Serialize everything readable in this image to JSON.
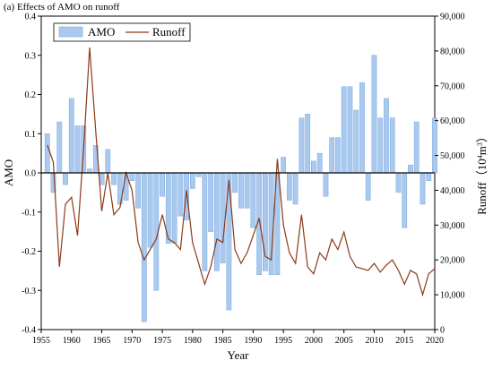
{
  "chart_data": {
    "type": "bar+line",
    "title": "(a) Effects of AMO on runoff",
    "xlabel": "Year",
    "ylabel_left": "AMO",
    "ylabel_right_main": "Runoff（10",
    "ylabel_right_sup": "4",
    "ylabel_right_unit": "m",
    "ylabel_right_sup2": "3",
    "ylabel_right_close": "）",
    "xlim": [
      1955,
      2020
    ],
    "ylim_left": [
      -0.4,
      0.4
    ],
    "ylim_right": [
      0,
      90000
    ],
    "x_ticks": [
      "1955",
      "1960",
      "1965",
      "1970",
      "1975",
      "1980",
      "1985",
      "1990",
      "1995",
      "2000",
      "2005",
      "2010",
      "2015",
      "2020"
    ],
    "y_left_ticks": [
      "0.4",
      "0.3",
      "0.2",
      "0.1",
      "0.0",
      "-0.1",
      "-0.2",
      "-0.3",
      "-0.4"
    ],
    "y_right_ticks": [
      "90,000",
      "80,000",
      "70,000",
      "60,000",
      "50,000",
      "40,000",
      "30,000",
      "20,000",
      "10,000",
      "0"
    ],
    "legend_position": "top-left",
    "series": [
      {
        "name": "AMO",
        "kind": "bar",
        "color": "#a9c9ef",
        "x": [
          1956,
          1957,
          1958,
          1959,
          1960,
          1961,
          1962,
          1963,
          1964,
          1965,
          1966,
          1967,
          1968,
          1969,
          1970,
          1971,
          1972,
          1973,
          1974,
          1975,
          1976,
          1977,
          1978,
          1979,
          1980,
          1981,
          1982,
          1983,
          1984,
          1985,
          1986,
          1987,
          1988,
          1989,
          1990,
          1991,
          1992,
          1993,
          1994,
          1995,
          1996,
          1997,
          1998,
          1999,
          2000,
          2001,
          2002,
          2003,
          2004,
          2005,
          2006,
          2007,
          2008,
          2009,
          2010,
          2011,
          2012,
          2013,
          2014,
          2015,
          2016,
          2017,
          2018,
          2019,
          2020
        ],
        "values": [
          0.1,
          -0.05,
          0.13,
          -0.03,
          0.19,
          0.12,
          0.12,
          0.01,
          0.07,
          -0.03,
          0.06,
          -0.03,
          -0.08,
          -0.07,
          -0.02,
          -0.09,
          -0.38,
          -0.19,
          -0.3,
          -0.06,
          -0.18,
          -0.18,
          -0.11,
          -0.12,
          -0.04,
          -0.01,
          -0.25,
          -0.15,
          -0.25,
          -0.23,
          -0.35,
          -0.05,
          -0.09,
          -0.09,
          -0.14,
          -0.26,
          -0.25,
          -0.26,
          -0.26,
          0.04,
          -0.07,
          -0.08,
          0.14,
          0.15,
          0.03,
          0.05,
          -0.06,
          0.09,
          0.09,
          0.22,
          0.22,
          0.16,
          0.23,
          -0.07,
          0.3,
          0.14,
          0.19,
          0.14,
          -0.05,
          -0.14,
          0.02,
          0.13,
          -0.08,
          -0.02,
          0.14
        ]
      },
      {
        "name": "Runoff",
        "kind": "line",
        "color": "#8b3a1a",
        "x": [
          1956,
          1957,
          1958,
          1959,
          1960,
          1961,
          1962,
          1963,
          1964,
          1965,
          1966,
          1967,
          1968,
          1969,
          1970,
          1971,
          1972,
          1973,
          1974,
          1975,
          1976,
          1977,
          1978,
          1979,
          1980,
          1981,
          1982,
          1983,
          1984,
          1985,
          1986,
          1987,
          1988,
          1989,
          1990,
          1991,
          1992,
          1993,
          1994,
          1995,
          1996,
          1997,
          1998,
          1999,
          2000,
          2001,
          2002,
          2003,
          2004,
          2005,
          2006,
          2007,
          2008,
          2009,
          2010,
          2011,
          2012,
          2013,
          2014,
          2015,
          2016,
          2017,
          2018,
          2019,
          2020
        ],
        "values": [
          53000,
          48000,
          18000,
          36000,
          38000,
          27000,
          52000,
          81000,
          57000,
          34000,
          45000,
          33000,
          35000,
          45000,
          40000,
          25000,
          20000,
          23000,
          26000,
          33000,
          26000,
          25000,
          23000,
          40000,
          25000,
          19000,
          13000,
          18000,
          26000,
          25000,
          43000,
          23000,
          19000,
          22000,
          27000,
          32000,
          21000,
          20000,
          49000,
          30000,
          22000,
          19000,
          33000,
          18000,
          16000,
          22000,
          20000,
          26000,
          23000,
          28000,
          21000,
          18000,
          17500,
          17000,
          19000,
          16500,
          18500,
          20000,
          17000,
          13000,
          17000,
          16000,
          10000,
          16000,
          17500
        ]
      }
    ]
  }
}
